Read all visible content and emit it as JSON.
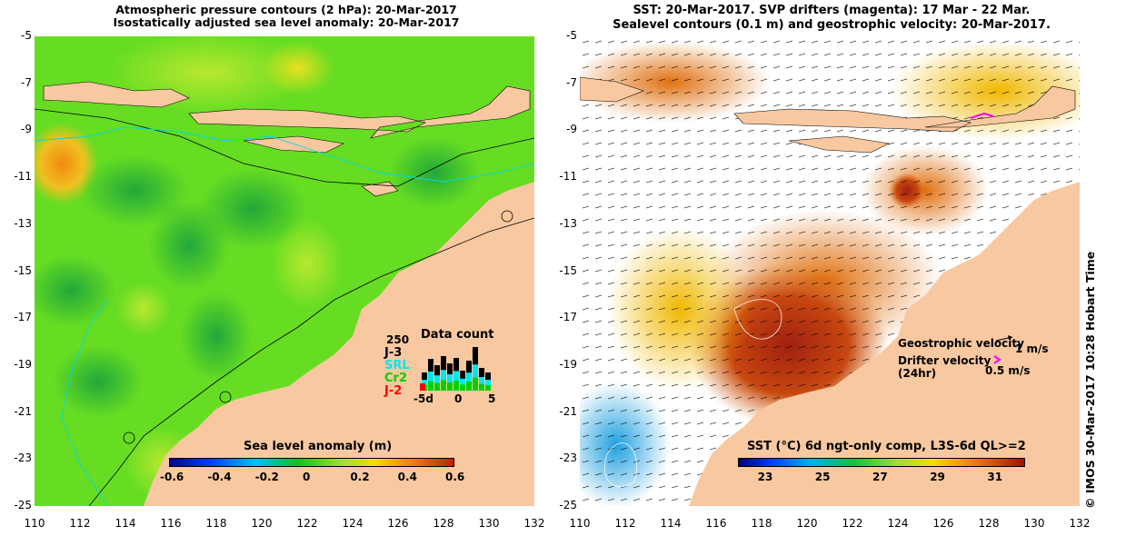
{
  "left_panel": {
    "title_line1": "Atmospheric pressure contours (2 hPa): 20-Mar-2017",
    "title_line2": "Isostatically adjusted sea level anomaly: 20-Mar-2017",
    "colorbar_label": "Sea level anomaly (m)",
    "colorbar_ticks": [
      "-0.6",
      "-0.4",
      "-0.2",
      "0",
      "0.2",
      "0.4",
      "0.6"
    ],
    "colorbar_range": [
      -0.6,
      0.6
    ],
    "data_count": {
      "title": "Data count",
      "scale_label": "250",
      "legend": [
        {
          "label": "J-3",
          "color": "#000000"
        },
        {
          "label": "SRL",
          "color": "#00e6f0"
        },
        {
          "label": "Cr2",
          "color": "#00d000"
        },
        {
          "label": "J-2",
          "color": "#ff0000"
        }
      ],
      "x_ticks": [
        "-5d",
        "0",
        "5"
      ]
    }
  },
  "right_panel": {
    "title_line1": "SST: 20-Mar-2017. SVP drifters (magenta): 17 Mar - 22 Mar.",
    "title_line2": "Sealevel contours (0.1 m) and geostrophic velocity: 20-Mar-2017.",
    "geostrophic_label": "Geostrophic velocity",
    "geostrophic_scale": "1 m/s",
    "drifter_label_line1": "Drifter velocity",
    "drifter_label_line2": "(24hr)",
    "drifter_scale": "0.5 m/s",
    "colorbar_label": "SST (°C) 6d ngt-only comp, L3S-6d QL>=2",
    "colorbar_ticks": [
      "23",
      "25",
      "27",
      "29",
      "31"
    ],
    "colorbar_range": [
      22,
      32
    ]
  },
  "axes": {
    "lat_ticks": [
      "-5",
      "-7",
      "-9",
      "-11",
      "-13",
      "-15",
      "-17",
      "-19",
      "-21",
      "-23",
      "-25"
    ],
    "lon_ticks": [
      "110",
      "112",
      "114",
      "116",
      "118",
      "120",
      "122",
      "124",
      "126",
      "128",
      "130",
      "132"
    ],
    "lat_range": [
      -25,
      -5
    ],
    "lon_range": [
      110,
      132
    ]
  },
  "side_label": "© IMOS 30-Mar-2017 10:28 Hobart Time",
  "colors": {
    "land": "#f8c8a0",
    "sla_base": "#66dd22",
    "drifter": "#ff00ff"
  }
}
